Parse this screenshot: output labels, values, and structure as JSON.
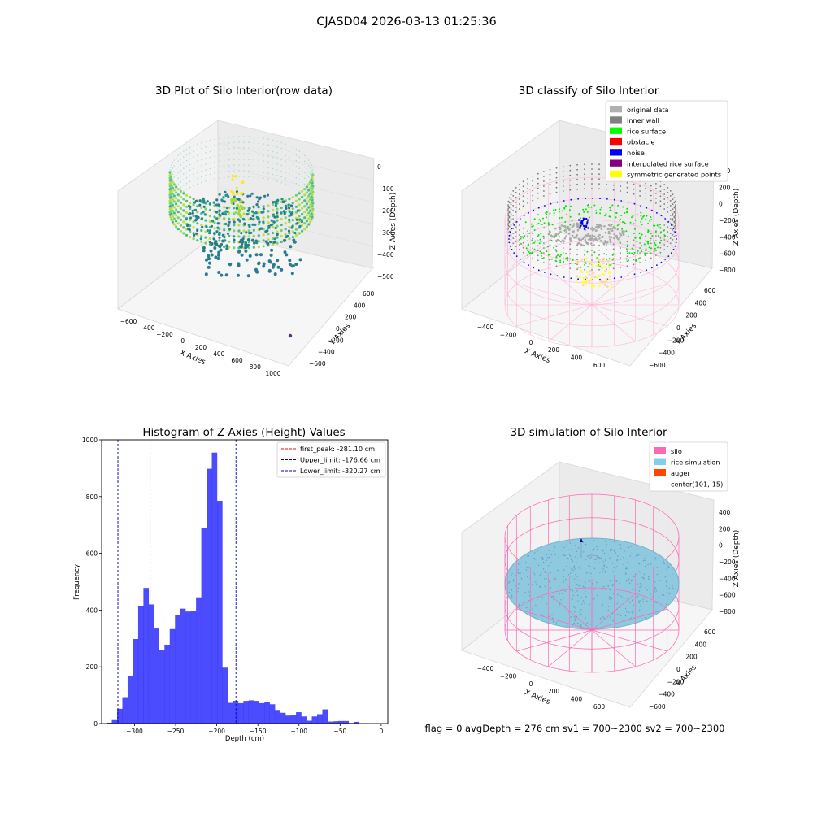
{
  "figure": {
    "suptitle": "CJASD04 2026-03-13 01:25:36",
    "status_line": "flag = 0     avgDepth = 276 cm  sv1 = 700~2300  sv2 = 700~2300"
  },
  "panels": {
    "raw": {
      "title": "3D Plot of Silo Interior(row data)",
      "xlabel": "X Axies",
      "ylabel": "Y Axies",
      "zlabel": "Z Axies (Depth)",
      "xticks": [
        "−600",
        "−400",
        "−200",
        "0",
        "200",
        "400",
        "600",
        "800",
        "1000"
      ],
      "yticks": [
        "−600",
        "−400",
        "−200",
        "0",
        "200",
        "400",
        "600"
      ],
      "zticks": [
        "0",
        "−100",
        "−200",
        "−300",
        "−400",
        "−500"
      ]
    },
    "classify": {
      "title": "3D classify of Silo Interior",
      "xlabel": "X Axies",
      "ylabel": "Y Axies",
      "zlabel": "Z Axies (Depth)",
      "xticks": [
        "−400",
        "−200",
        "0",
        "200",
        "400",
        "600"
      ],
      "yticks": [
        "−600",
        "−400",
        "−200",
        "0",
        "200",
        "400",
        "600"
      ],
      "zticks": [
        "400",
        "200",
        "0",
        "−200",
        "−400",
        "−600",
        "−800"
      ],
      "legend": [
        {
          "label": "original data",
          "color": "#b0b0b0"
        },
        {
          "label": "inner wall",
          "color": "#808080"
        },
        {
          "label": "rice surface",
          "color": "#00ff00"
        },
        {
          "label": "obstacle",
          "color": "#ff0000"
        },
        {
          "label": "noise",
          "color": "#0000ff"
        },
        {
          "label": "interpolated rice surface",
          "color": "#800080"
        },
        {
          "label": "symmetric generated points",
          "color": "#ffff00"
        }
      ]
    },
    "simulation": {
      "title": "3D simulation of Silo Interior",
      "xlabel": "X Axies",
      "ylabel": "Y Axies",
      "zlabel": "Z Axies (Depth)",
      "xticks": [
        "−400",
        "−200",
        "0",
        "200",
        "400",
        "600"
      ],
      "yticks": [
        "−600",
        "−400",
        "−200",
        "0",
        "200",
        "400",
        "600"
      ],
      "zticks": [
        "400",
        "200",
        "0",
        "−200",
        "−400",
        "−600",
        "−800"
      ],
      "legend": [
        {
          "label": "silo",
          "color": "#ff69b4"
        },
        {
          "label": "rice simulation",
          "color": "#87ceeb"
        },
        {
          "label": "auger",
          "color": "#ff4500"
        },
        {
          "label": "center(101,-15)",
          "color": ""
        }
      ]
    }
  },
  "chart_data": {
    "type": "bar",
    "title": "Histogram of Z-Axies (Height) Values",
    "xlabel": "Depth (cm)",
    "ylabel": "Frequency",
    "xlim": [
      -340,
      8
    ],
    "ylim": [
      0,
      1000
    ],
    "xticks": [
      -300,
      -250,
      -200,
      -150,
      -100,
      -50,
      0
    ],
    "xtick_labels": [
      "−300",
      "−250",
      "−200",
      "−150",
      "−100",
      "−50",
      "0"
    ],
    "yticks": [
      0,
      200,
      400,
      600,
      800,
      1000
    ],
    "bar_color": "#0000ff",
    "bin_edges_start": -334,
    "bin_width": 6.4,
    "counts": [
      3,
      15,
      52,
      93,
      167,
      298,
      413,
      478,
      420,
      335,
      260,
      278,
      333,
      382,
      405,
      395,
      398,
      445,
      688,
      898,
      955,
      785,
      197,
      73,
      80,
      72,
      80,
      82,
      80,
      72,
      75,
      68,
      48,
      38,
      28,
      30,
      40,
      25,
      10,
      25,
      33,
      50,
      7,
      8,
      9,
      9,
      2,
      6,
      1
    ],
    "vlines": [
      {
        "x": -281.1,
        "color": "#ff0000",
        "label": "first_peak: -281.10 cm"
      },
      {
        "x": -176.66,
        "color": "#0000cc",
        "label": "Upper_limit: -176.66 cm"
      },
      {
        "x": -320.27,
        "color": "#0000cc",
        "label": "Lower_limit: -320.27 cm"
      }
    ],
    "legend_position": "top-right"
  }
}
